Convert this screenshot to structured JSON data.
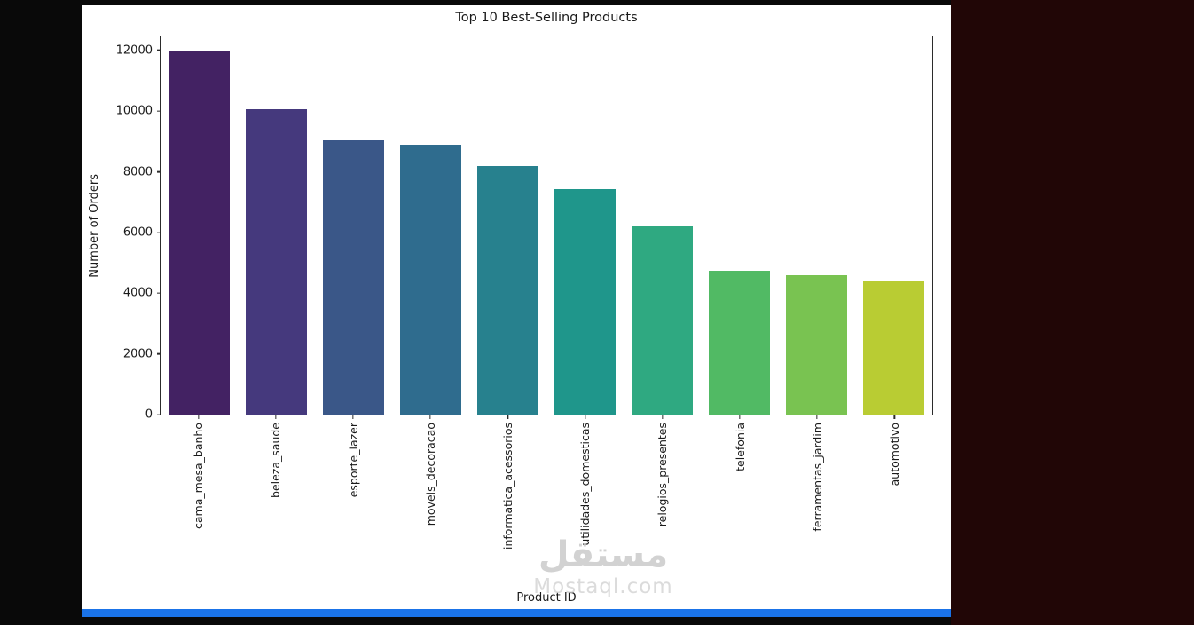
{
  "background": {
    "page_color": "#090909",
    "right_panel_color": "#210606",
    "bottom_bar_color": "#1a73e8"
  },
  "watermark": {
    "arabic": "مستقل",
    "latin": "Mostaql.com"
  },
  "chart_data": {
    "type": "bar",
    "title": "Top 10 Best-Selling Products",
    "xlabel": "Product ID",
    "ylabel": "Number of Orders",
    "ylim": [
      0,
      12460
    ],
    "yticks": [
      0,
      2000,
      4000,
      6000,
      8000,
      10000,
      12000
    ],
    "grid": false,
    "legend": "none",
    "categories": [
      "cama_mesa_banho",
      "beleza_saude",
      "esporte_lazer",
      "moveis_decoracao",
      "informatica_acessorios",
      "utilidades_domesticas",
      "relogios_presentes",
      "telefonia",
      "ferramentas_jardim",
      "automotivo"
    ],
    "values": [
      12000,
      10050,
      9050,
      8880,
      8180,
      7420,
      6200,
      4750,
      4600,
      4400
    ],
    "bar_colors": [
      "#432263",
      "#45397d",
      "#3a5788",
      "#2f6c8e",
      "#27818e",
      "#1f968b",
      "#2fa981",
      "#51ba64",
      "#79c351",
      "#b9cc33"
    ]
  }
}
